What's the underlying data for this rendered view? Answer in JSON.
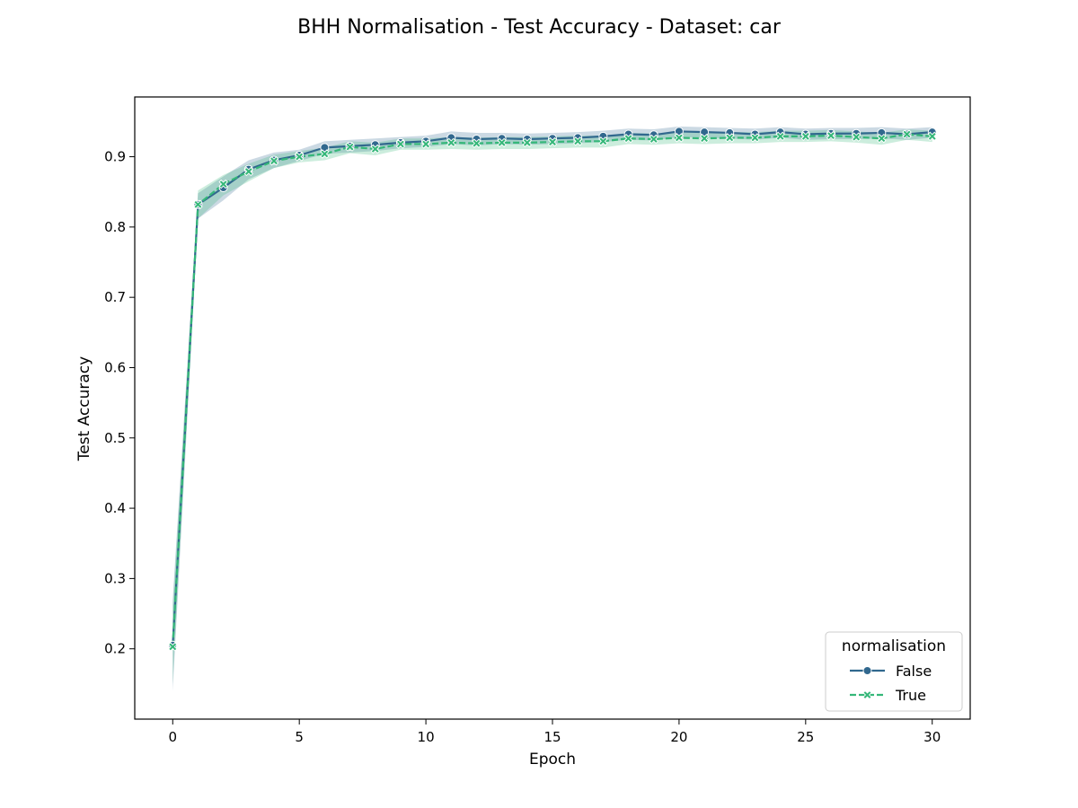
{
  "chart_data": {
    "type": "line",
    "title": "BHH Normalisation - Test Accuracy - Dataset: car",
    "xlabel": "Epoch",
    "ylabel": "Test Accuracy",
    "xlim": [
      -1.5,
      31.5
    ],
    "ylim": [
      0.1,
      0.985
    ],
    "xticks": [
      0,
      5,
      10,
      15,
      20,
      25,
      30
    ],
    "yticks": [
      0.2,
      0.3,
      0.4,
      0.5,
      0.6,
      0.7,
      0.8,
      0.9
    ],
    "grid": false,
    "legend": {
      "title": "normalisation",
      "placement": "lower-right"
    },
    "x": [
      0,
      1,
      2,
      3,
      4,
      5,
      6,
      7,
      8,
      9,
      10,
      11,
      12,
      13,
      14,
      15,
      16,
      17,
      18,
      19,
      20,
      21,
      22,
      23,
      24,
      25,
      26,
      27,
      28,
      29,
      30
    ],
    "series": [
      {
        "name": "False",
        "color": "#31688e",
        "marker": "circle",
        "dash": "solid",
        "values": [
          0.205,
          0.832,
          0.856,
          0.882,
          0.895,
          0.902,
          0.913,
          0.915,
          0.917,
          0.92,
          0.922,
          0.927,
          0.925,
          0.926,
          0.925,
          0.926,
          0.927,
          0.929,
          0.932,
          0.931,
          0.936,
          0.935,
          0.934,
          0.932,
          0.935,
          0.932,
          0.933,
          0.933,
          0.934,
          0.932,
          0.935
        ],
        "lower": [
          0.14,
          0.812,
          0.838,
          0.868,
          0.884,
          0.894,
          0.904,
          0.906,
          0.908,
          0.912,
          0.914,
          0.918,
          0.916,
          0.918,
          0.917,
          0.918,
          0.919,
          0.921,
          0.924,
          0.923,
          0.928,
          0.927,
          0.926,
          0.924,
          0.927,
          0.924,
          0.925,
          0.925,
          0.926,
          0.924,
          0.927
        ],
        "upper": [
          0.27,
          0.848,
          0.872,
          0.895,
          0.906,
          0.91,
          0.922,
          0.924,
          0.926,
          0.928,
          0.93,
          0.936,
          0.934,
          0.934,
          0.933,
          0.934,
          0.935,
          0.937,
          0.94,
          0.939,
          0.943,
          0.942,
          0.941,
          0.94,
          0.942,
          0.94,
          0.941,
          0.941,
          0.942,
          0.94,
          0.942
        ]
      },
      {
        "name": "True",
        "color": "#35b779",
        "marker": "x",
        "dash": "dashed",
        "values": [
          0.203,
          0.832,
          0.861,
          0.879,
          0.894,
          0.9,
          0.904,
          0.914,
          0.911,
          0.918,
          0.918,
          0.92,
          0.919,
          0.92,
          0.92,
          0.921,
          0.922,
          0.922,
          0.926,
          0.925,
          0.927,
          0.926,
          0.927,
          0.927,
          0.929,
          0.929,
          0.93,
          0.928,
          0.926,
          0.932,
          0.929
        ],
        "lower": [
          0.15,
          0.812,
          0.845,
          0.865,
          0.884,
          0.892,
          0.895,
          0.905,
          0.902,
          0.91,
          0.91,
          0.911,
          0.91,
          0.911,
          0.911,
          0.912,
          0.913,
          0.913,
          0.918,
          0.917,
          0.919,
          0.918,
          0.919,
          0.919,
          0.921,
          0.921,
          0.922,
          0.92,
          0.917,
          0.924,
          0.921
        ],
        "upper": [
          0.26,
          0.852,
          0.874,
          0.89,
          0.903,
          0.908,
          0.913,
          0.922,
          0.92,
          0.926,
          0.926,
          0.928,
          0.927,
          0.928,
          0.928,
          0.929,
          0.93,
          0.93,
          0.934,
          0.933,
          0.935,
          0.934,
          0.935,
          0.935,
          0.937,
          0.937,
          0.938,
          0.936,
          0.934,
          0.939,
          0.937
        ]
      }
    ]
  }
}
